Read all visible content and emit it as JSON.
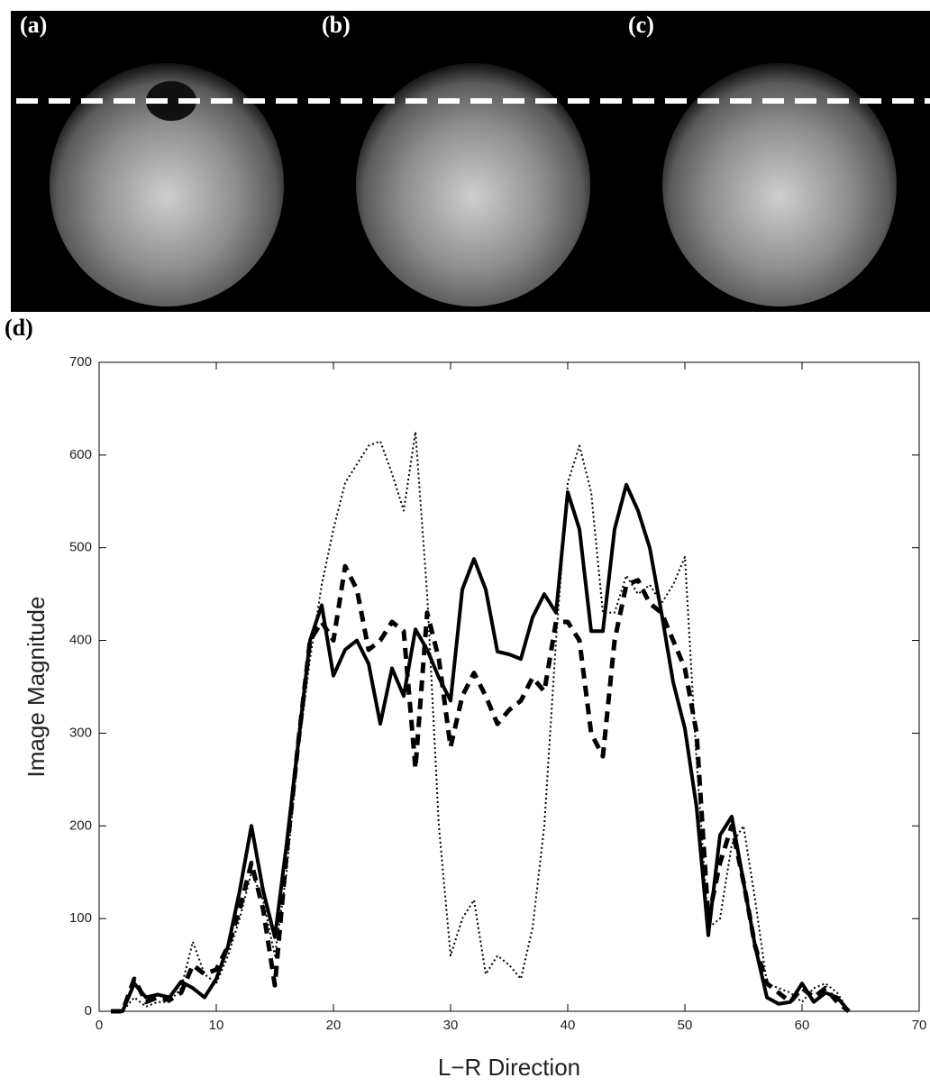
{
  "panel_labels": [
    "(a)",
    "(b)",
    "(c)",
    "(d)"
  ],
  "chart_data": {
    "type": "line",
    "x_label": "L−R Direction",
    "y_label": "Image Magnitude",
    "xlim": [
      0,
      70
    ],
    "xticks": [
      0,
      10,
      20,
      30,
      40,
      50,
      60,
      70
    ],
    "ylim": [
      0,
      700
    ],
    "yticks": [
      0,
      100,
      200,
      300,
      400,
      500,
      600,
      700
    ],
    "grid": false,
    "x": [
      1,
      2,
      3,
      4,
      5,
      6,
      7,
      8,
      9,
      10,
      11,
      12,
      13,
      14,
      15,
      16,
      17,
      18,
      19,
      20,
      21,
      22,
      23,
      24,
      25,
      26,
      27,
      28,
      29,
      30,
      31,
      32,
      33,
      34,
      35,
      36,
      37,
      38,
      39,
      40,
      41,
      42,
      43,
      44,
      45,
      46,
      47,
      48,
      49,
      50,
      51,
      52,
      53,
      54,
      55,
      56,
      57,
      58,
      59,
      60,
      61,
      62,
      63,
      64
    ],
    "series": [
      {
        "color": "#000000",
        "line_style": "dotted",
        "values": [
          0,
          0,
          15,
          5,
          10,
          10,
          25,
          75,
          40,
          30,
          60,
          100,
          150,
          120,
          60,
          150,
          280,
          380,
          460,
          520,
          570,
          590,
          610,
          615,
          580,
          540,
          625,
          450,
          200,
          60,
          100,
          120,
          40,
          60,
          50,
          35,
          90,
          200,
          400,
          570,
          610,
          560,
          430,
          430,
          470,
          450,
          460,
          440,
          460,
          490,
          270,
          90,
          100,
          180,
          200,
          120,
          30,
          25,
          20,
          10,
          25,
          30,
          20,
          0
        ]
      },
      {
        "color": "#000000",
        "line_style": "dashed",
        "values": [
          0,
          0,
          35,
          10,
          15,
          12,
          20,
          50,
          40,
          45,
          70,
          110,
          160,
          110,
          28,
          170,
          290,
          400,
          420,
          400,
          480,
          455,
          390,
          400,
          420,
          410,
          262,
          430,
          380,
          285,
          340,
          365,
          340,
          310,
          325,
          335,
          360,
          345,
          420,
          420,
          400,
          300,
          275,
          400,
          460,
          465,
          440,
          430,
          400,
          370,
          300,
          100,
          160,
          200,
          140,
          70,
          30,
          20,
          10,
          25,
          15,
          25,
          10,
          0
        ]
      },
      {
        "color": "#000000",
        "line_style": "solid",
        "values": [
          0,
          0,
          30,
          15,
          18,
          15,
          32,
          25,
          15,
          35,
          70,
          130,
          200,
          130,
          80,
          180,
          290,
          400,
          438,
          362,
          390,
          400,
          375,
          310,
          370,
          340,
          412,
          390,
          360,
          335,
          455,
          488,
          455,
          388,
          385,
          380,
          425,
          450,
          430,
          560,
          520,
          410,
          410,
          520,
          568,
          540,
          500,
          430,
          355,
          305,
          220,
          82,
          190,
          210,
          140,
          70,
          15,
          8,
          10,
          30,
          10,
          20,
          15,
          0
        ]
      }
    ]
  }
}
